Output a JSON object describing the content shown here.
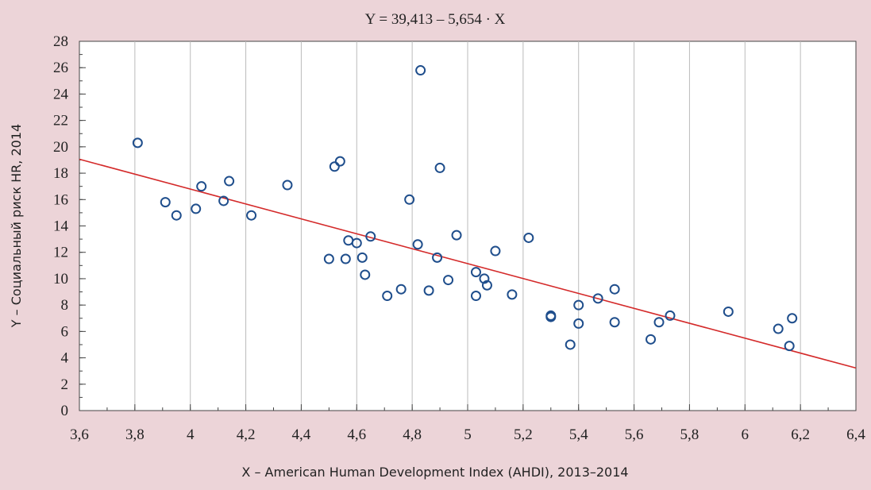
{
  "chart_data": {
    "type": "scatter",
    "title": "Y = 39,413 – 5,654 · X",
    "x_label": "X – American Human Development Index (AHDI), 2013–2014",
    "y_label": "Y – Социальный риск HR, 2014",
    "x": [
      3.81,
      3.91,
      3.95,
      4.02,
      4.04,
      4.12,
      4.14,
      4.22,
      4.35,
      4.5,
      4.52,
      4.54,
      4.56,
      4.57,
      4.6,
      4.62,
      4.63,
      4.65,
      4.71,
      4.76,
      4.79,
      4.82,
      4.83,
      4.86,
      4.89,
      4.9,
      4.93,
      4.96,
      5.03,
      5.03,
      5.06,
      5.07,
      5.1,
      5.16,
      5.22,
      5.3,
      5.3,
      5.37,
      5.4,
      5.4,
      5.47,
      5.53,
      5.53,
      5.66,
      5.69,
      5.73,
      5.94,
      6.12,
      6.16,
      6.17
    ],
    "values": [
      20.3,
      15.8,
      14.8,
      15.3,
      17.0,
      15.9,
      17.4,
      14.8,
      17.1,
      11.5,
      18.5,
      18.9,
      11.5,
      12.9,
      12.7,
      11.6,
      10.3,
      13.2,
      8.7,
      9.2,
      16.0,
      12.6,
      25.8,
      9.1,
      11.6,
      18.4,
      9.9,
      13.3,
      10.5,
      8.7,
      10.0,
      9.5,
      12.1,
      8.8,
      13.1,
      7.2,
      7.1,
      5.0,
      8.0,
      6.6,
      8.5,
      9.2,
      6.7,
      5.4,
      6.7,
      7.2,
      7.5,
      6.2,
      4.9,
      7.0
    ],
    "color": "#1f4e8c",
    "trendline": {
      "intercept": 39.413,
      "slope": -5.654,
      "color": "#d42a2a"
    },
    "xlim": [
      3.6,
      6.4
    ],
    "xticks": [
      {
        "value": 3.6,
        "label": "3,6"
      },
      {
        "value": 3.8,
        "label": "3,8"
      },
      4,
      {
        "value": 4.2,
        "label": "4,2"
      },
      {
        "value": 4.4,
        "label": "4,4"
      },
      {
        "value": 4.6,
        "label": "4,6"
      },
      {
        "value": 4.8,
        "label": "4,8"
      },
      5,
      {
        "value": 5.2,
        "label": "5,2"
      },
      {
        "value": 5.4,
        "label": "5,4"
      },
      {
        "value": 5.6,
        "label": "5,6"
      },
      {
        "value": 5.8,
        "label": "5,8"
      },
      6,
      {
        "value": 6.2,
        "label": "6,2"
      },
      {
        "value": 6.4,
        "label": "6,4"
      }
    ],
    "ylim": [
      0,
      28
    ],
    "yticks": [
      0,
      2,
      4,
      6,
      8,
      10,
      12,
      14,
      16,
      18,
      20,
      22,
      24,
      26,
      28
    ],
    "grid": "x"
  }
}
